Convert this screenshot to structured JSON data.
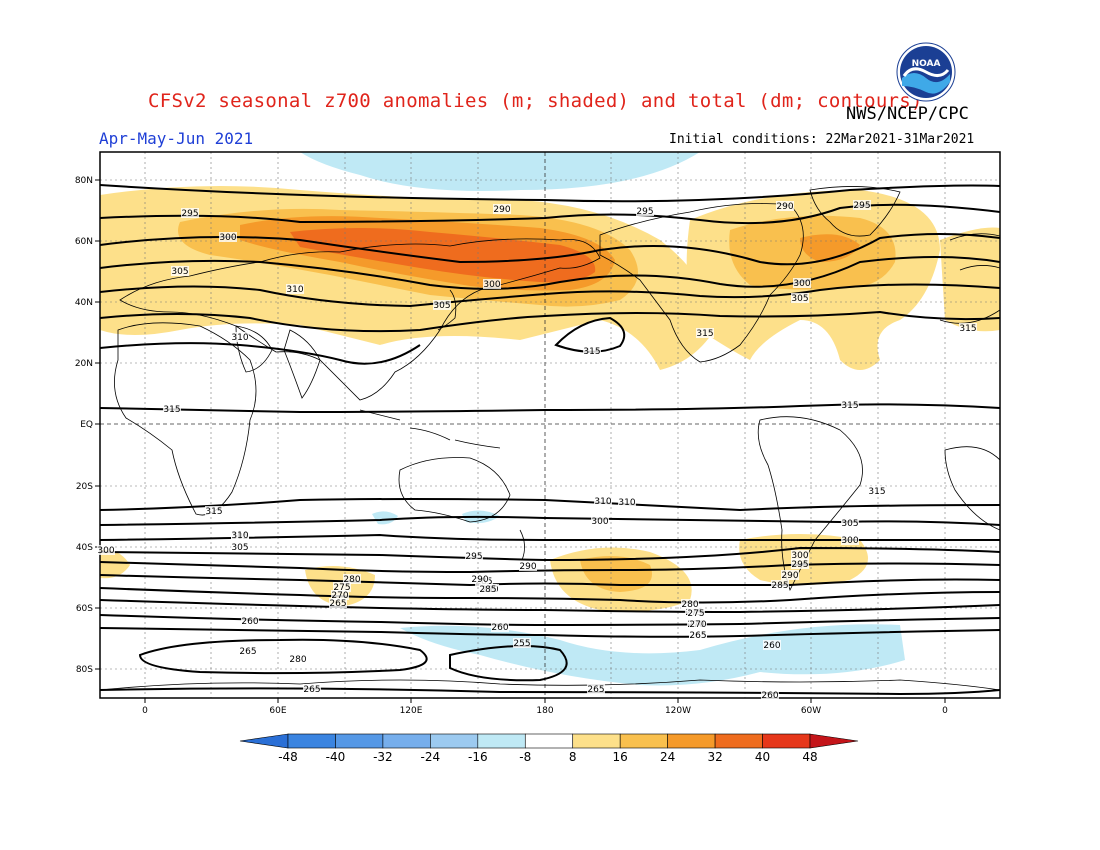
{
  "header": {
    "title": "CFSv2 seasonal z700 anomalies (m; shaded) and total (dm; contours)",
    "agency": "NWS/NCEP/CPC",
    "period": "Apr-May-Jun 2021",
    "initial_conditions": "Initial conditions: 22Mar2021-31Mar2021"
  },
  "logo": {
    "text": "NOAA",
    "icon": "noaa-logo-icon"
  },
  "map": {
    "lat_ticks": [
      "80N",
      "60N",
      "40N",
      "20N",
      "EQ",
      "20S",
      "40S",
      "60S",
      "80S"
    ],
    "lon_ticks": [
      "0",
      "60E",
      "120E",
      "180",
      "120W",
      "60W",
      "0"
    ],
    "contour_labels": [
      "295",
      "290",
      "295",
      "290",
      "295",
      "300",
      "300",
      "305",
      "310",
      "305",
      "300",
      "305",
      "310",
      "315",
      "315",
      "315",
      "315",
      "315",
      "315",
      "315",
      "310",
      "305",
      "300",
      "295",
      "290",
      "285",
      "280",
      "275",
      "270",
      "265",
      "260",
      "265",
      "280",
      "265",
      "260",
      "255",
      "265",
      "260",
      "260",
      "280",
      "275",
      "270",
      "265",
      "300",
      "295",
      "290",
      "285",
      "310",
      "305",
      "300",
      "290",
      "285",
      "280",
      "275",
      "270",
      "265",
      "310",
      "305",
      "300"
    ]
  },
  "colorbar": {
    "ticks": [
      "-48",
      "-40",
      "-32",
      "-24",
      "-16",
      "-8",
      "8",
      "16",
      "24",
      "32",
      "40",
      "48"
    ],
    "colors": [
      "#2a6fd6",
      "#3a84e0",
      "#5598e6",
      "#76aeec",
      "#9ccaf0",
      "#bfe9f5",
      "#ffffff",
      "#fde08a",
      "#f9c04e",
      "#f59a2a",
      "#ef6c1e",
      "#e6371a",
      "#c4151a"
    ]
  }
}
